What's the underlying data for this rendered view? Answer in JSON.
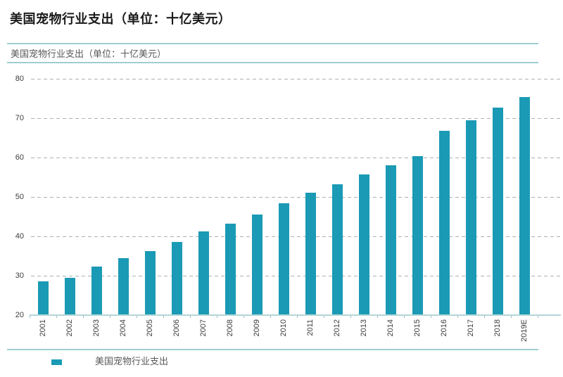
{
  "title": "美国宠物行业支出（单位：十亿美元）",
  "chart_header": "美国宠物行业支出（单位：十亿美元）",
  "legend": {
    "label": "美国宠物行业支出"
  },
  "colors": {
    "bar": "#1b9ab5",
    "band_line": "#9fcdd0",
    "gridline": "#a9b2b6",
    "axis_line": "#b2d6d8",
    "title_text": "#1a1a1a",
    "subtitle_text": "#595959",
    "tick_text": "#3d3d3d"
  },
  "chart_data": {
    "type": "bar",
    "title": "美国宠物行业支出（单位：十亿美元）",
    "xlabel": "",
    "ylabel": "",
    "categories": [
      "2001",
      "2002",
      "2003",
      "2004",
      "2005",
      "2006",
      "2007",
      "2008",
      "2009",
      "2010",
      "2011",
      "2012",
      "2013",
      "2014",
      "2015",
      "2016",
      "2017",
      "2018",
      "2019E"
    ],
    "values": [
      28.5,
      29.5,
      32.4,
      34.4,
      36.3,
      38.5,
      41.2,
      43.2,
      45.5,
      48.4,
      51.0,
      53.3,
      55.7,
      58.0,
      60.3,
      66.8,
      69.5,
      72.6,
      75.4
    ],
    "ylim": [
      20,
      80
    ],
    "yticks": [
      20,
      30,
      40,
      50,
      60,
      70,
      80
    ],
    "grid": "horizontal-dashed",
    "legend_entries": [
      "美国宠物行业支出"
    ],
    "legend_position": "bottom-left",
    "bar_color": "#1b9ab5"
  }
}
